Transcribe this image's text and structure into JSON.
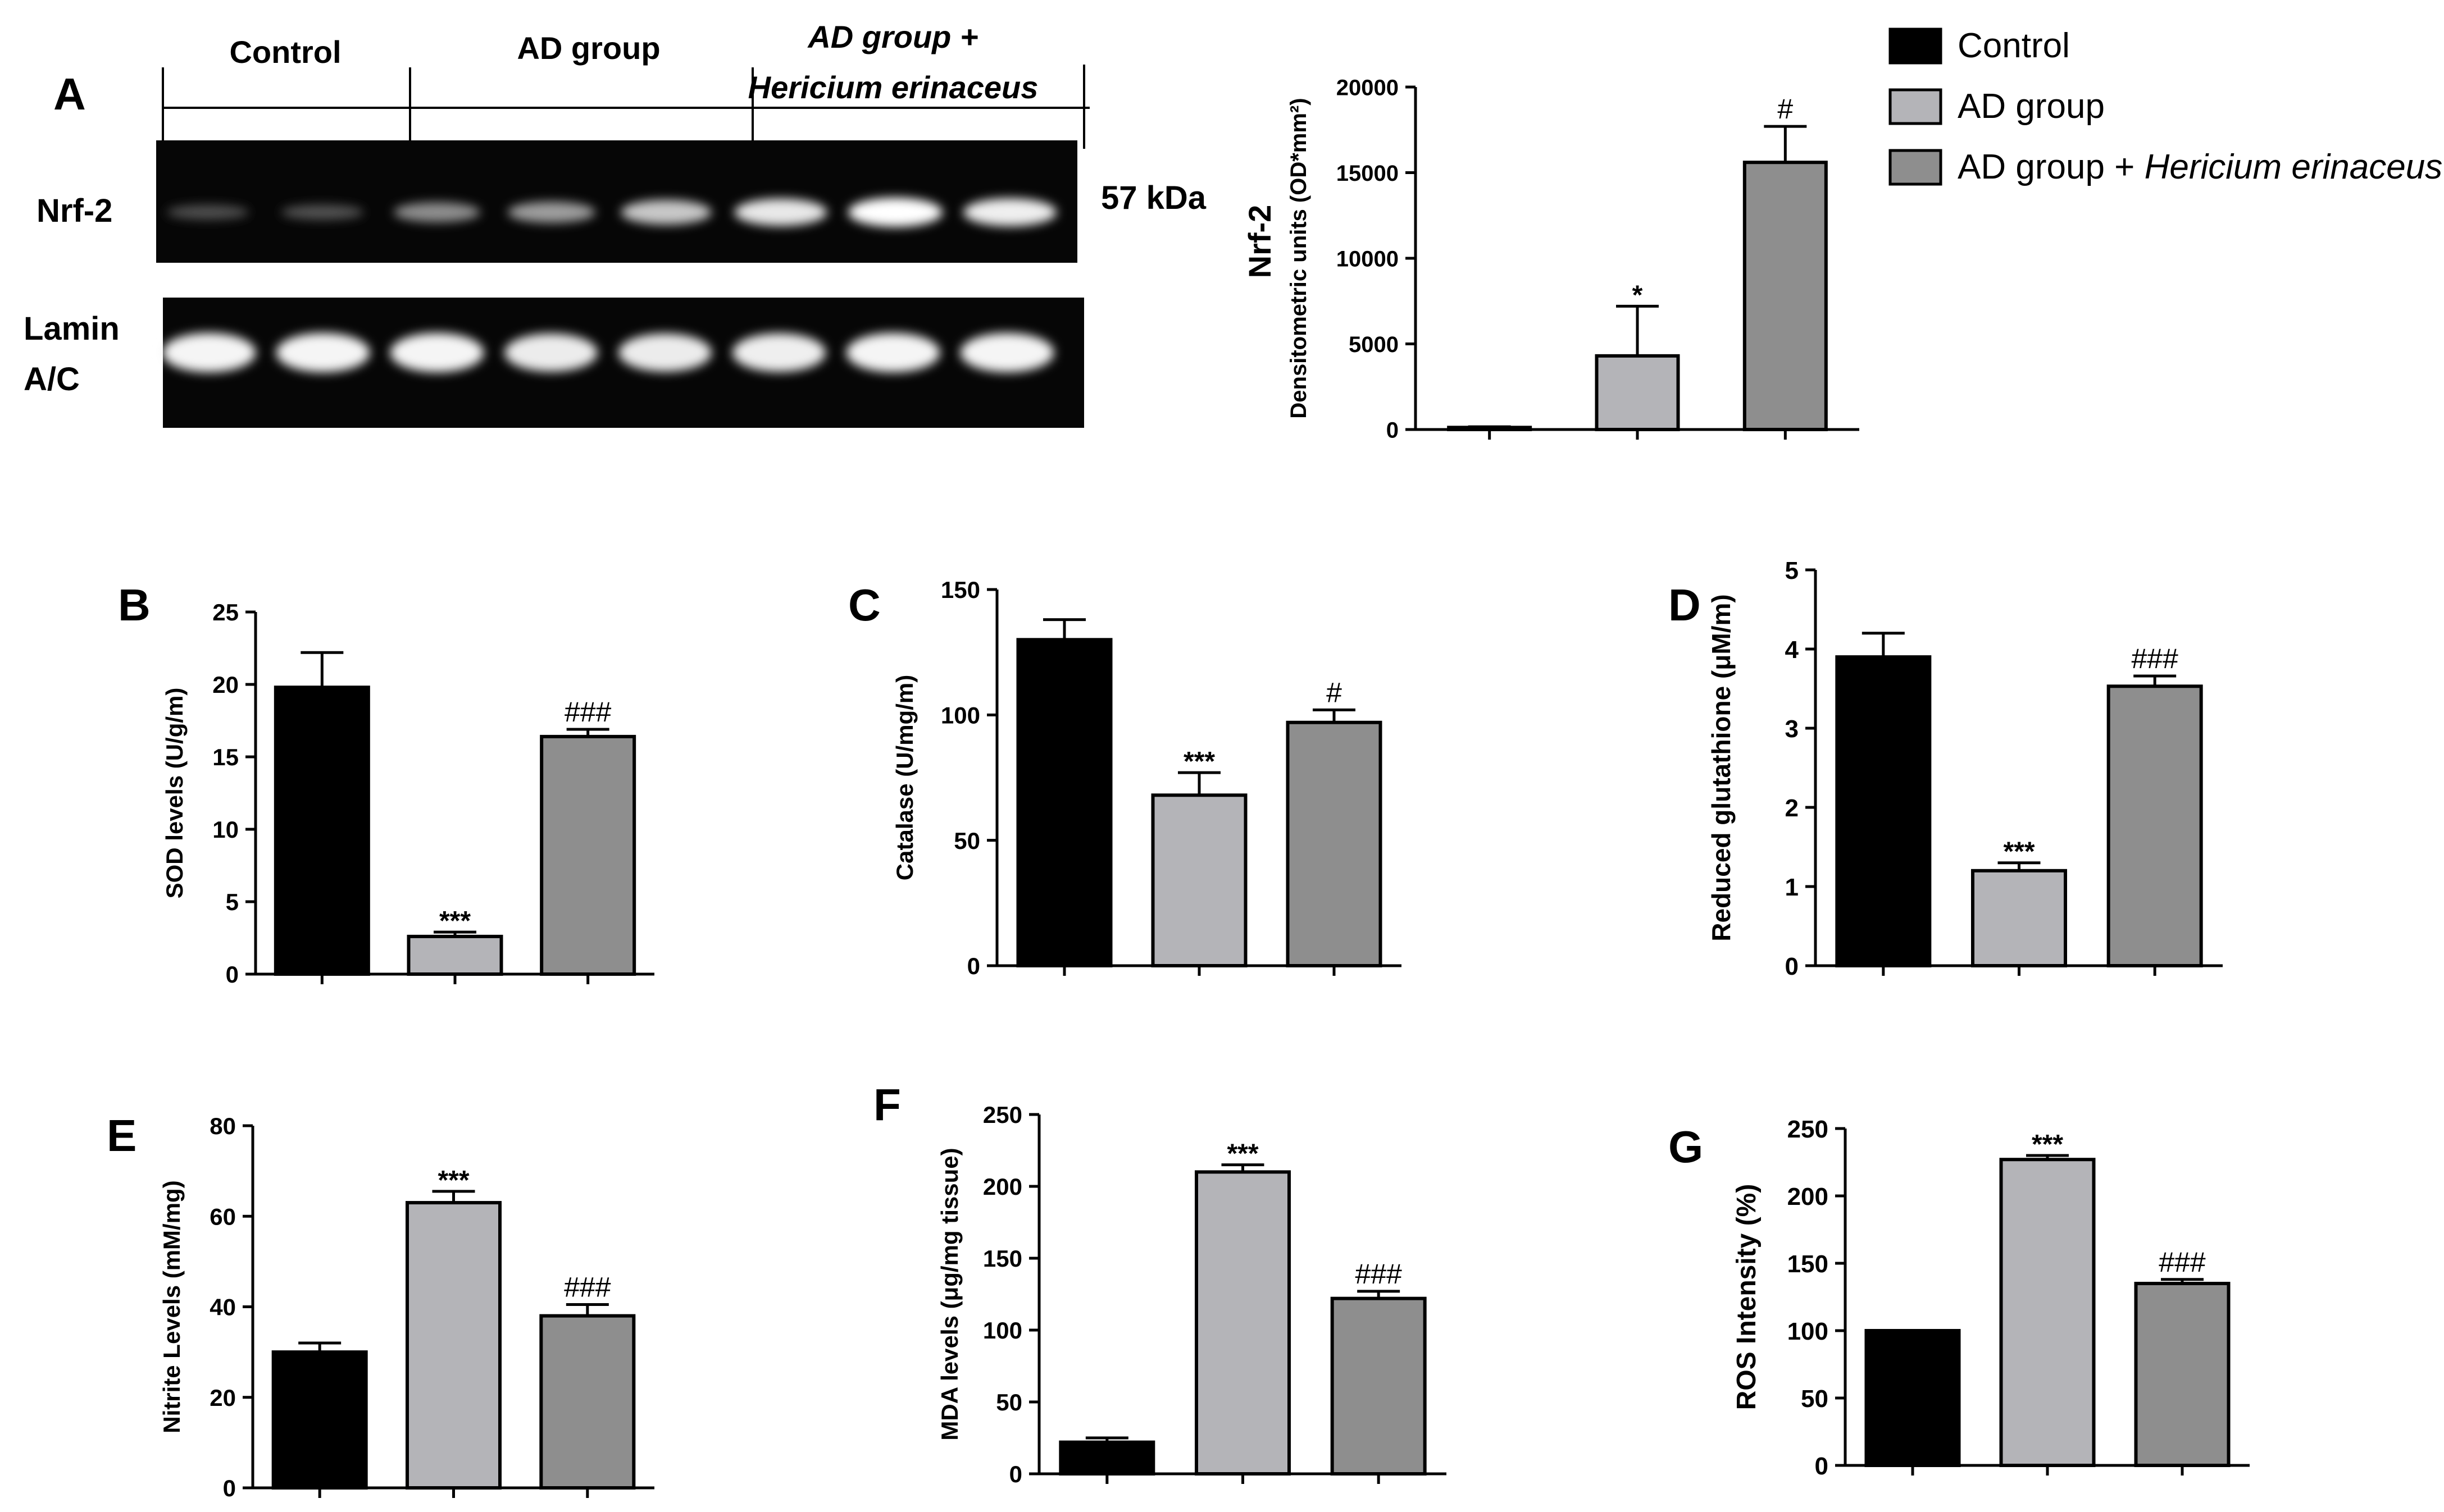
{
  "figure": {
    "colors": {
      "control": "#000000",
      "ad": "#b4b4b8",
      "adhe": "#8e8e8e",
      "blot_bg": "#060606"
    },
    "legend": {
      "items": [
        {
          "key": "control",
          "label": "Control",
          "label_italic": ""
        },
        {
          "key": "ad",
          "label": "AD group",
          "label_italic": ""
        },
        {
          "key": "adhe",
          "label": "AD group + ",
          "label_italic": "Hericium erinaceus"
        }
      ]
    },
    "western_blot": {
      "panel_letter": "A",
      "group_headers": [
        "Control",
        "AD group",
        "AD group +",
        "Hericium erinaceus"
      ],
      "row_labels": [
        "Nrf-2",
        "Lamin",
        "A/C"
      ],
      "kda_label": "57 kDa",
      "nrf2_band_intensity": [
        0.1,
        0.12,
        0.42,
        0.5,
        0.72,
        0.88,
        1.0,
        0.92
      ],
      "lamin_band_intensity": [
        0.95,
        0.95,
        0.95,
        0.9,
        0.9,
        0.92,
        0.95,
        0.95
      ]
    }
  },
  "chart_data": [
    {
      "panel": "A",
      "type": "bar",
      "categories": [
        "Control",
        "AD group",
        "AD group + Hericium erinaceus"
      ],
      "values": [
        120,
        4300,
        15600
      ],
      "errors": [
        40,
        2900,
        2100
      ],
      "annotations": [
        "",
        "*",
        "#"
      ],
      "ylabel_main": "Nrf-2",
      "ylabel": "Densitometric units (OD*mm²)",
      "ylim": [
        0,
        20000
      ],
      "yticks": [
        0,
        5000,
        10000,
        15000,
        20000
      ]
    },
    {
      "panel": "B",
      "type": "bar",
      "categories": [
        "Control",
        "AD group",
        "AD group + Hericium erinaceus"
      ],
      "values": [
        19.8,
        2.6,
        16.4
      ],
      "errors": [
        2.4,
        0.3,
        0.5
      ],
      "annotations": [
        "",
        "***",
        "###"
      ],
      "ylabel": "SOD levels (U/g/m)",
      "ylim": [
        0,
        25
      ],
      "yticks": [
        0,
        5,
        10,
        15,
        20,
        25
      ]
    },
    {
      "panel": "C",
      "type": "bar",
      "categories": [
        "Control",
        "AD group",
        "AD group + Hericium erinaceus"
      ],
      "values": [
        130,
        68,
        97
      ],
      "errors": [
        8,
        9,
        5
      ],
      "annotations": [
        "",
        "***",
        "#"
      ],
      "ylabel": "Catalase (U/mg/m)",
      "ylim": [
        0,
        150
      ],
      "yticks": [
        0,
        50,
        100,
        150
      ]
    },
    {
      "panel": "D",
      "type": "bar",
      "categories": [
        "Control",
        "AD group",
        "AD group + Hericium erinaceus"
      ],
      "values": [
        3.9,
        1.2,
        3.53
      ],
      "errors": [
        0.3,
        0.1,
        0.13
      ],
      "annotations": [
        "",
        "***",
        "###"
      ],
      "ylabel": "Reduced glutathione (μM/m)",
      "ylim": [
        0,
        5
      ],
      "yticks": [
        0,
        1,
        2,
        3,
        4,
        5
      ]
    },
    {
      "panel": "E",
      "type": "bar",
      "categories": [
        "Control",
        "AD group",
        "AD group + Hericium erinaceus"
      ],
      "values": [
        30,
        63,
        38
      ],
      "errors": [
        2,
        2.5,
        2.5
      ],
      "annotations": [
        "",
        "***",
        "###"
      ],
      "ylabel": "Nitrite Levels (mM/mg)",
      "ylim": [
        0,
        80
      ],
      "yticks": [
        0,
        20,
        40,
        60,
        80
      ]
    },
    {
      "panel": "F",
      "type": "bar",
      "categories": [
        "Control",
        "AD group",
        "AD group + Hericium erinaceus"
      ],
      "values": [
        22,
        210,
        122
      ],
      "errors": [
        3,
        5,
        5
      ],
      "annotations": [
        "",
        "***",
        "###"
      ],
      "ylabel": "MDA levels (μg/mg tissue)",
      "ylim": [
        0,
        250
      ],
      "yticks": [
        0,
        50,
        100,
        150,
        200,
        250
      ]
    },
    {
      "panel": "G",
      "type": "bar",
      "categories": [
        "Control",
        "AD group",
        "AD group + Hericium erinaceus"
      ],
      "values": [
        100,
        227,
        135
      ],
      "errors": [
        0,
        3,
        3
      ],
      "annotations": [
        "",
        "***",
        "###"
      ],
      "ylabel": "ROS Intensity (%)",
      "ylim": [
        0,
        250
      ],
      "yticks": [
        0,
        50,
        100,
        150,
        200,
        250
      ]
    }
  ]
}
